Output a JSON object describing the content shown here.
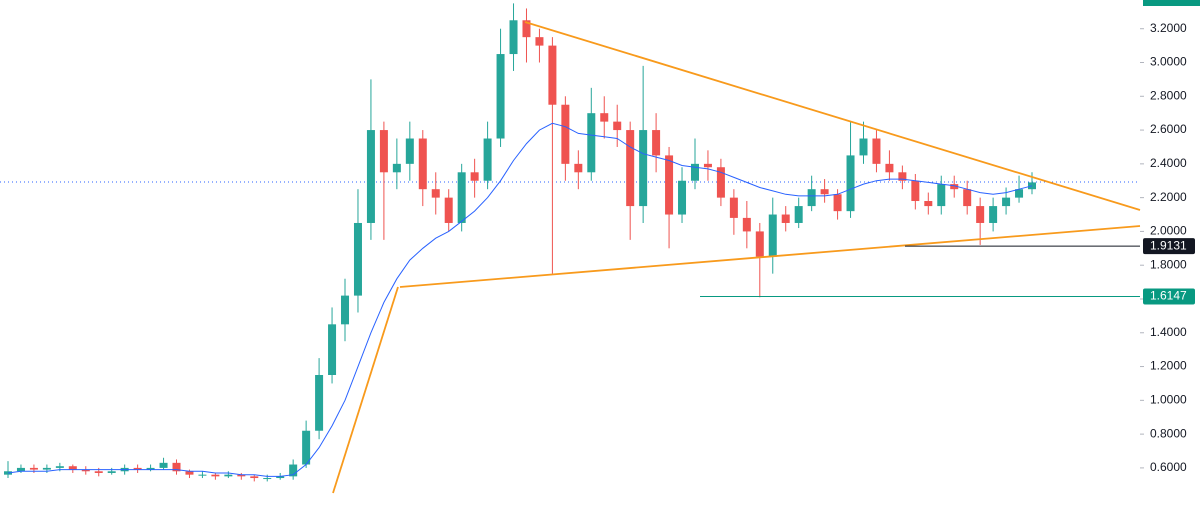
{
  "chart_data": {
    "type": "candlestick",
    "up_color": "#26a69a",
    "down_color": "#ef5350",
    "ylim": [
      0.41,
      3.37
    ],
    "yticks": [
      {
        "value": 0.6,
        "label": "0.6000"
      },
      {
        "value": 0.8,
        "label": "0.8000"
      },
      {
        "value": 1.0,
        "label": "1.0000"
      },
      {
        "value": 1.2,
        "label": "1.2000"
      },
      {
        "value": 1.4,
        "label": "1.4000"
      },
      {
        "value": 1.6,
        "label": "1.6000"
      },
      {
        "value": 1.8,
        "label": "1.8000"
      },
      {
        "value": 2.0,
        "label": "2.0000"
      },
      {
        "value": 2.2,
        "label": "2.2000"
      },
      {
        "value": 2.4,
        "label": "2.4000"
      },
      {
        "value": 2.6,
        "label": "2.6000"
      },
      {
        "value": 2.8,
        "label": "2.8000"
      },
      {
        "value": 3.0,
        "label": "3.0000"
      },
      {
        "value": 3.2,
        "label": "3.2000"
      }
    ],
    "open": [
      0.56,
      0.58,
      0.6,
      0.59,
      0.6,
      0.61,
      0.59,
      0.58,
      0.57,
      0.58,
      0.6,
      0.59,
      0.6,
      0.63,
      0.58,
      0.56,
      0.56,
      0.55,
      0.56,
      0.55,
      0.54,
      0.54,
      0.55,
      0.62,
      0.82,
      1.15,
      1.45,
      1.62,
      2.05,
      2.6,
      2.35,
      2.4,
      2.55,
      2.25,
      2.2,
      2.05,
      2.35,
      2.3,
      2.55,
      3.05,
      3.25,
      3.15,
      3.1,
      2.75,
      2.4,
      2.35,
      2.7,
      2.65,
      2.6,
      2.15,
      2.6,
      2.45,
      2.1,
      2.3,
      2.4,
      2.38,
      2.2,
      2.08,
      2.0,
      1.85,
      2.1,
      2.05,
      2.15,
      2.25,
      2.22,
      2.12,
      2.45,
      2.55,
      2.4,
      2.35,
      2.3,
      2.18,
      2.15,
      2.28,
      2.25,
      2.15,
      2.05,
      2.15,
      2.2,
      2.25
    ],
    "high": [
      0.64,
      0.62,
      0.62,
      0.62,
      0.63,
      0.62,
      0.61,
      0.6,
      0.6,
      0.62,
      0.62,
      0.62,
      0.66,
      0.65,
      0.59,
      0.58,
      0.57,
      0.58,
      0.57,
      0.56,
      0.56,
      0.57,
      0.65,
      0.88,
      1.25,
      1.55,
      1.72,
      2.25,
      2.9,
      2.65,
      2.55,
      2.65,
      2.6,
      2.35,
      2.25,
      2.4,
      2.43,
      2.65,
      3.2,
      3.35,
      3.32,
      3.2,
      3.15,
      2.8,
      2.48,
      2.85,
      2.8,
      2.75,
      2.65,
      2.98,
      2.7,
      2.5,
      2.38,
      2.55,
      2.48,
      2.43,
      2.25,
      2.18,
      2.05,
      2.2,
      2.15,
      2.2,
      2.33,
      2.31,
      2.25,
      2.65,
      2.65,
      2.6,
      2.48,
      2.39,
      2.34,
      2.23,
      2.33,
      2.33,
      2.3,
      2.2,
      2.2,
      2.26,
      2.33,
      2.35
    ],
    "low": [
      0.54,
      0.57,
      0.57,
      0.57,
      0.58,
      0.57,
      0.56,
      0.55,
      0.56,
      0.56,
      0.57,
      0.58,
      0.59,
      0.56,
      0.54,
      0.54,
      0.53,
      0.54,
      0.53,
      0.52,
      0.52,
      0.53,
      0.53,
      0.6,
      0.77,
      1.1,
      1.35,
      1.52,
      1.95,
      1.95,
      2.25,
      2.3,
      2.15,
      2.1,
      2.0,
      2.0,
      2.2,
      2.25,
      2.5,
      2.95,
      3.0,
      3.0,
      1.75,
      2.3,
      2.25,
      2.3,
      2.55,
      2.5,
      1.95,
      2.05,
      2.35,
      1.9,
      2.05,
      2.25,
      2.3,
      2.15,
      1.98,
      1.9,
      1.61,
      1.75,
      2.0,
      2.02,
      2.12,
      2.17,
      2.07,
      2.08,
      2.4,
      2.35,
      2.3,
      2.25,
      2.13,
      2.1,
      2.1,
      2.2,
      2.1,
      1.92,
      2.0,
      2.1,
      2.17,
      2.22
    ],
    "close": [
      0.58,
      0.6,
      0.59,
      0.6,
      0.61,
      0.59,
      0.58,
      0.57,
      0.58,
      0.6,
      0.59,
      0.6,
      0.63,
      0.58,
      0.56,
      0.56,
      0.55,
      0.56,
      0.55,
      0.54,
      0.54,
      0.55,
      0.62,
      0.82,
      1.15,
      1.45,
      1.62,
      2.05,
      2.6,
      2.35,
      2.4,
      2.55,
      2.25,
      2.2,
      2.05,
      2.35,
      2.3,
      2.55,
      3.05,
      3.25,
      3.15,
      3.1,
      2.75,
      2.4,
      2.35,
      2.7,
      2.65,
      2.6,
      2.15,
      2.6,
      2.45,
      2.1,
      2.3,
      2.4,
      2.38,
      2.2,
      2.08,
      2.0,
      1.85,
      2.1,
      2.05,
      2.15,
      2.25,
      2.22,
      2.12,
      2.45,
      2.55,
      2.4,
      2.35,
      2.3,
      2.18,
      2.15,
      2.28,
      2.25,
      2.15,
      2.05,
      2.15,
      2.2,
      2.25,
      2.29
    ],
    "moving_average": {
      "color": "#2962ff",
      "values": [
        0.57,
        0.58,
        0.58,
        0.58,
        0.59,
        0.59,
        0.59,
        0.59,
        0.59,
        0.59,
        0.59,
        0.59,
        0.59,
        0.59,
        0.58,
        0.58,
        0.57,
        0.57,
        0.56,
        0.56,
        0.55,
        0.55,
        0.56,
        0.62,
        0.72,
        0.85,
        1.0,
        1.2,
        1.4,
        1.58,
        1.72,
        1.83,
        1.9,
        1.96,
        2.0,
        2.06,
        2.12,
        2.2,
        2.3,
        2.42,
        2.52,
        2.6,
        2.64,
        2.62,
        2.58,
        2.57,
        2.56,
        2.55,
        2.5,
        2.46,
        2.44,
        2.42,
        2.39,
        2.38,
        2.37,
        2.35,
        2.32,
        2.29,
        2.26,
        2.24,
        2.22,
        2.21,
        2.21,
        2.21,
        2.22,
        2.25,
        2.28,
        2.3,
        2.31,
        2.31,
        2.3,
        2.29,
        2.28,
        2.27,
        2.25,
        2.23,
        2.22,
        2.23,
        2.25,
        2.27
      ]
    },
    "price_lines": [
      {
        "value": 1.9131,
        "color": "#131722"
      },
      {
        "value": 1.6147,
        "color": "#089981"
      }
    ]
  }
}
